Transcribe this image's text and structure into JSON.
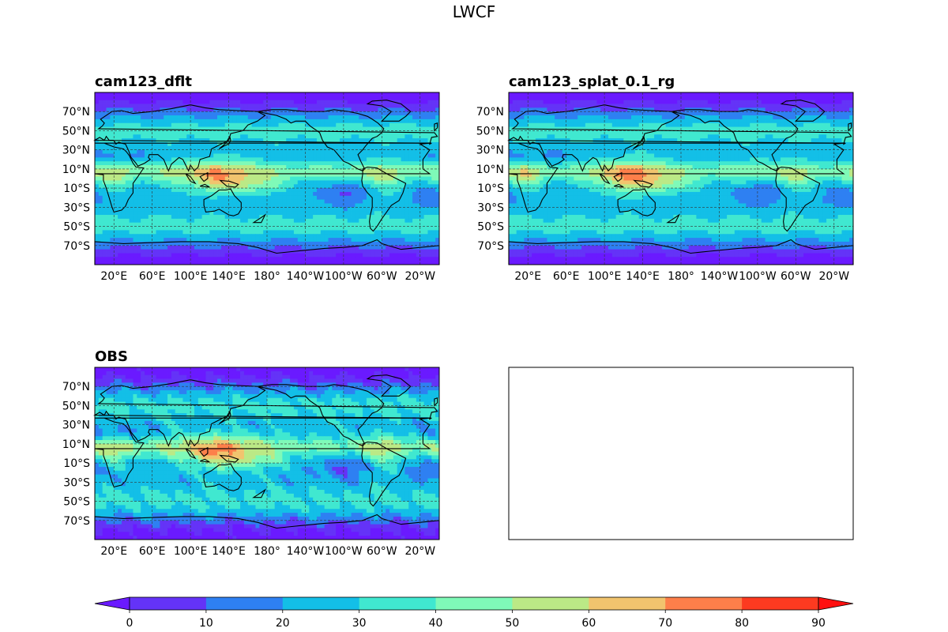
{
  "chart_data": {
    "type": "filled-contour-map",
    "suptitle": "LWCF",
    "panels": [
      {
        "title": "cam123_dflt",
        "has_data": true
      },
      {
        "title": "cam123_splat_0.1_rg",
        "has_data": true
      },
      {
        "title": "OBS",
        "has_data": true
      },
      {
        "title": "",
        "has_data": false
      }
    ],
    "lat_ticks": [
      "70°N",
      "50°N",
      "30°N",
      "10°N",
      "10°S",
      "30°S",
      "50°S",
      "70°S"
    ],
    "lat_values": [
      70,
      50,
      30,
      10,
      -10,
      -30,
      -50,
      -70
    ],
    "lon_ticks": [
      "20°E",
      "60°E",
      "100°E",
      "140°E",
      "180°",
      "140°W",
      "100°W",
      "60°W",
      "20°W"
    ],
    "lon_values": [
      20,
      60,
      100,
      140,
      180,
      220,
      260,
      300,
      340
    ],
    "lon_range": [
      0,
      360
    ],
    "lat_range": [
      -90,
      90
    ],
    "grid": true,
    "colorbar": {
      "levels": [
        0,
        10,
        20,
        30,
        40,
        50,
        60,
        70,
        80,
        90
      ],
      "tick_labels": [
        "0",
        "10",
        "20",
        "30",
        "40",
        "50",
        "60",
        "70",
        "80",
        "90"
      ],
      "colors": [
        "#6a1aff",
        "#6433f7",
        "#2e80f2",
        "#13bfe7",
        "#40e8d0",
        "#7ffab8",
        "#bbe986",
        "#f1c46e",
        "#fd7f4a",
        "#fc3a20",
        "#ff1010"
      ],
      "extend": "both"
    }
  }
}
